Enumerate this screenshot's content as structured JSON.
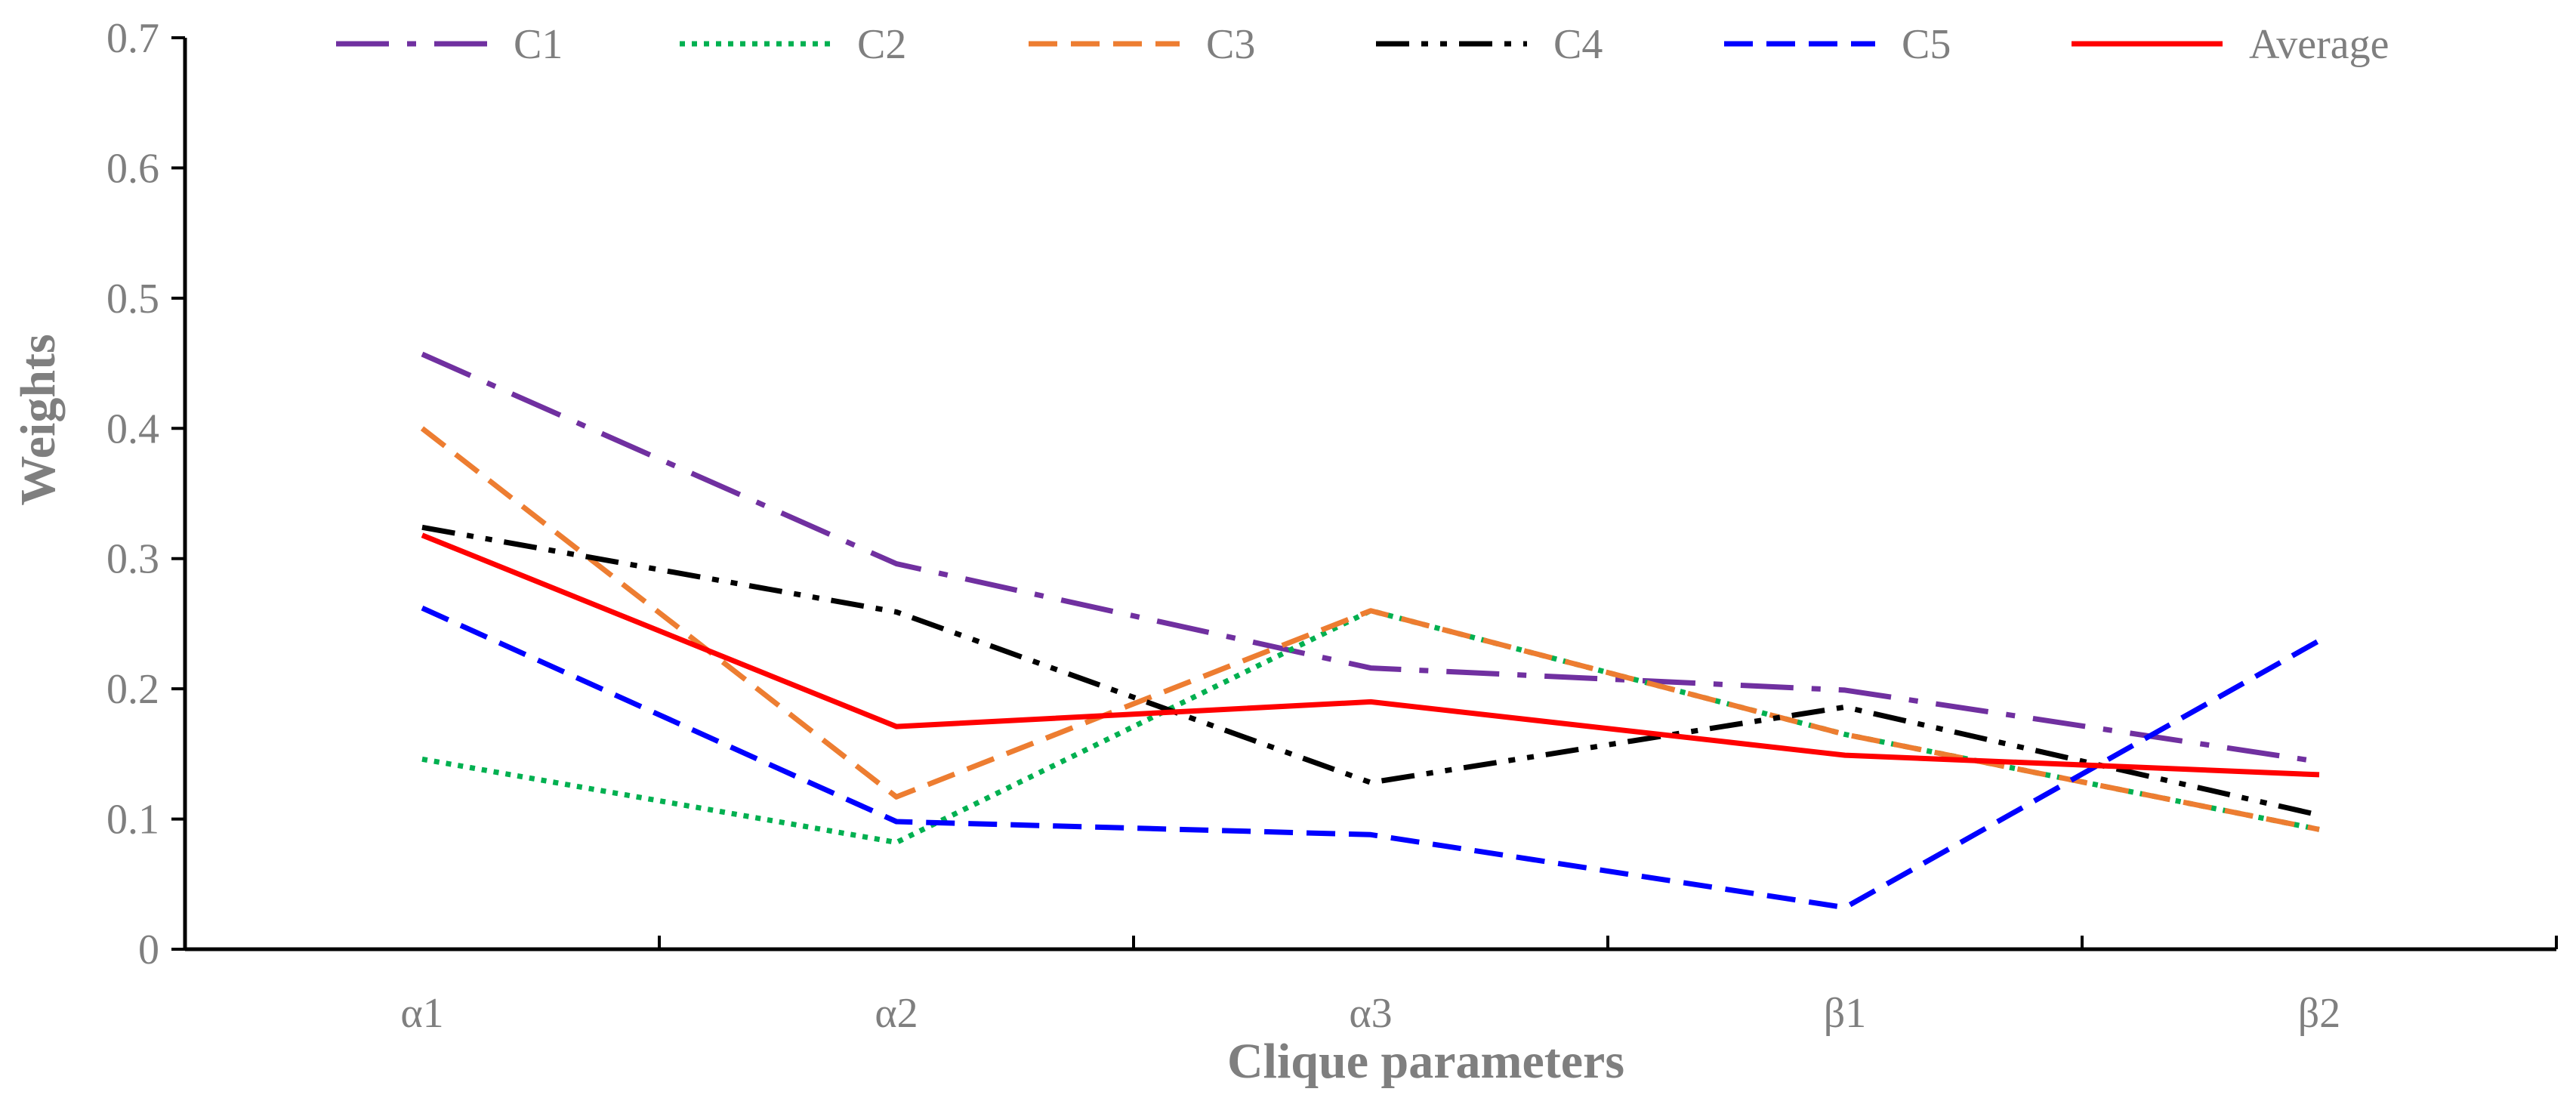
{
  "chart_data": {
    "type": "line",
    "xlabel": "Clique parameters",
    "ylabel": "Weights",
    "categories": [
      "α1",
      "α2",
      "α3",
      "β1",
      "β2"
    ],
    "ylim": [
      0,
      0.7
    ],
    "yticks": [
      "0",
      "0.1",
      "0.2",
      "0.3",
      "0.4",
      "0.5",
      "0.6",
      "0.7"
    ],
    "legend_position": "top",
    "grid": false,
    "series": [
      {
        "name": "C1",
        "values": [
          0.457,
          0.296,
          0.216,
          0.199,
          0.144
        ],
        "color": "#7030a0",
        "dash": "long-dash-dot"
      },
      {
        "name": "C2",
        "values": [
          0.146,
          0.082,
          0.26,
          0.165,
          0.092
        ],
        "color": "#00b050",
        "dash": "dotted"
      },
      {
        "name": "C3",
        "values": [
          0.4,
          0.117,
          0.26,
          0.165,
          0.092
        ],
        "color": "#ed7d31",
        "dash": "dashed"
      },
      {
        "name": "C4",
        "values": [
          0.324,
          0.259,
          0.128,
          0.186,
          0.103
        ],
        "color": "#000000",
        "dash": "dash-dot-dot"
      },
      {
        "name": "C5",
        "values": [
          0.262,
          0.098,
          0.088,
          0.032,
          0.237
        ],
        "color": "#0000ff",
        "dash": "dashed"
      },
      {
        "name": "Average",
        "values": [
          0.318,
          0.171,
          0.19,
          0.149,
          0.134
        ],
        "color": "#ff0000",
        "dash": "solid"
      }
    ]
  }
}
